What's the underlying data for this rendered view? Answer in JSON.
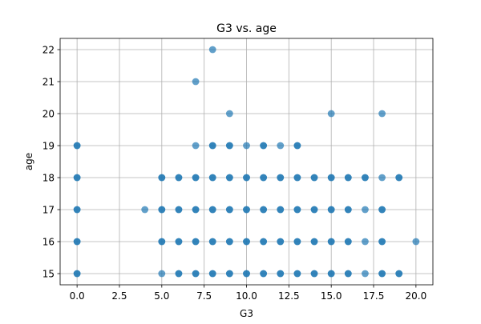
{
  "chart_data": {
    "type": "scatter",
    "title": "G3 vs. age",
    "xlabel": "G3",
    "ylabel": "age",
    "xlim": [
      -1.0,
      21.0
    ],
    "ylim": [
      14.65,
      22.35
    ],
    "xticks": [
      0.0,
      2.5,
      5.0,
      7.5,
      10.0,
      12.5,
      15.0,
      17.5,
      20.0
    ],
    "xtick_labels": [
      "0.0",
      "2.5",
      "5.0",
      "7.5",
      "10.0",
      "12.5",
      "15.0",
      "17.5",
      "20.0"
    ],
    "yticks": [
      15,
      16,
      17,
      18,
      19,
      20,
      21,
      22
    ],
    "ytick_labels": [
      "15",
      "16",
      "17",
      "18",
      "19",
      "20",
      "21",
      "22"
    ],
    "grid": true,
    "marker_color": "#1f77b4",
    "marker_alpha": 0.7,
    "points": [
      [
        0,
        15
      ],
      [
        0,
        16
      ],
      [
        0,
        17
      ],
      [
        0,
        18
      ],
      [
        0,
        19
      ],
      [
        5,
        15
      ],
      [
        6,
        15
      ],
      [
        7,
        15
      ],
      [
        8,
        15
      ],
      [
        9,
        15
      ],
      [
        10,
        15
      ],
      [
        11,
        15
      ],
      [
        12,
        15
      ],
      [
        13,
        15
      ],
      [
        14,
        15
      ],
      [
        15,
        15
      ],
      [
        16,
        15
      ],
      [
        17,
        15
      ],
      [
        18,
        15
      ],
      [
        19,
        15
      ],
      [
        5,
        16
      ],
      [
        6,
        16
      ],
      [
        7,
        16
      ],
      [
        8,
        16
      ],
      [
        9,
        16
      ],
      [
        10,
        16
      ],
      [
        11,
        16
      ],
      [
        12,
        16
      ],
      [
        13,
        16
      ],
      [
        14,
        16
      ],
      [
        15,
        16
      ],
      [
        16,
        16
      ],
      [
        17,
        16
      ],
      [
        18,
        16
      ],
      [
        20,
        16
      ],
      [
        4,
        17
      ],
      [
        5,
        17
      ],
      [
        6,
        17
      ],
      [
        7,
        17
      ],
      [
        8,
        17
      ],
      [
        9,
        17
      ],
      [
        10,
        17
      ],
      [
        11,
        17
      ],
      [
        12,
        17
      ],
      [
        13,
        17
      ],
      [
        14,
        17
      ],
      [
        15,
        17
      ],
      [
        16,
        17
      ],
      [
        17,
        17
      ],
      [
        18,
        17
      ],
      [
        5,
        18
      ],
      [
        6,
        18
      ],
      [
        7,
        18
      ],
      [
        8,
        18
      ],
      [
        9,
        18
      ],
      [
        10,
        18
      ],
      [
        11,
        18
      ],
      [
        12,
        18
      ],
      [
        13,
        18
      ],
      [
        14,
        18
      ],
      [
        15,
        18
      ],
      [
        16,
        18
      ],
      [
        17,
        18
      ],
      [
        18,
        18
      ],
      [
        19,
        18
      ],
      [
        7,
        19
      ],
      [
        8,
        19
      ],
      [
        9,
        19
      ],
      [
        10,
        19
      ],
      [
        11,
        19
      ],
      [
        12,
        19
      ],
      [
        13,
        19
      ],
      [
        9,
        20
      ],
      [
        15,
        20
      ],
      [
        18,
        20
      ],
      [
        7,
        21
      ],
      [
        8,
        22
      ]
    ],
    "dense_points": [
      [
        0,
        15
      ],
      [
        0,
        16
      ],
      [
        0,
        17
      ],
      [
        0,
        18
      ],
      [
        0,
        19
      ],
      [
        6,
        15
      ],
      [
        7,
        15
      ],
      [
        8,
        15
      ],
      [
        9,
        15
      ],
      [
        10,
        15
      ],
      [
        11,
        15
      ],
      [
        12,
        15
      ],
      [
        13,
        15
      ],
      [
        14,
        15
      ],
      [
        15,
        15
      ],
      [
        16,
        15
      ],
      [
        18,
        15
      ],
      [
        19,
        15
      ],
      [
        5,
        16
      ],
      [
        6,
        16
      ],
      [
        7,
        16
      ],
      [
        8,
        16
      ],
      [
        9,
        16
      ],
      [
        10,
        16
      ],
      [
        11,
        16
      ],
      [
        12,
        16
      ],
      [
        13,
        16
      ],
      [
        14,
        16
      ],
      [
        15,
        16
      ],
      [
        16,
        16
      ],
      [
        18,
        16
      ],
      [
        5,
        17
      ],
      [
        6,
        17
      ],
      [
        7,
        17
      ],
      [
        8,
        17
      ],
      [
        9,
        17
      ],
      [
        10,
        17
      ],
      [
        11,
        17
      ],
      [
        12,
        17
      ],
      [
        13,
        17
      ],
      [
        14,
        17
      ],
      [
        15,
        17
      ],
      [
        16,
        17
      ],
      [
        18,
        17
      ],
      [
        5,
        18
      ],
      [
        6,
        18
      ],
      [
        7,
        18
      ],
      [
        8,
        18
      ],
      [
        9,
        18
      ],
      [
        10,
        18
      ],
      [
        11,
        18
      ],
      [
        12,
        18
      ],
      [
        13,
        18
      ],
      [
        14,
        18
      ],
      [
        15,
        18
      ],
      [
        16,
        18
      ],
      [
        17,
        18
      ],
      [
        19,
        18
      ],
      [
        8,
        19
      ],
      [
        9,
        19
      ],
      [
        11,
        19
      ],
      [
        13,
        19
      ]
    ]
  }
}
